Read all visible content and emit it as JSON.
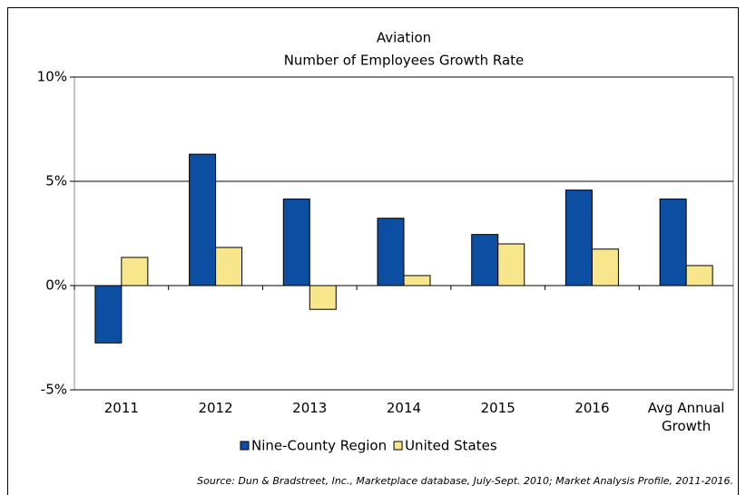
{
  "chart_data": {
    "type": "bar",
    "title": "Aviation",
    "subtitle": "Number of Employees Growth Rate",
    "categories": [
      "2011",
      "2012",
      "2013",
      "2014",
      "2015",
      "2016",
      "Avg Annual Growth"
    ],
    "series": [
      {
        "name": "Nine-County Region",
        "color": "#0b4ea2",
        "values": [
          -2.75,
          6.3,
          4.15,
          3.23,
          2.45,
          4.58,
          4.15
        ]
      },
      {
        "name": "United States",
        "color": "#f8e68c",
        "values": [
          1.35,
          1.83,
          -1.14,
          0.48,
          2.0,
          1.75,
          0.96
        ]
      }
    ],
    "ylim": [
      -5,
      10
    ],
    "yticks": [
      {
        "value": -5,
        "label": "-5%"
      },
      {
        "value": 0,
        "label": "0%"
      },
      {
        "value": 5,
        "label": "5%"
      },
      {
        "value": 10,
        "label": "10%"
      }
    ],
    "grid": true,
    "legend": "bottom",
    "source": "Source: Dun & Bradstreet, Inc., Marketplace database, July-Sept. 2010; Market Analysis Profile, 2011-2016."
  }
}
